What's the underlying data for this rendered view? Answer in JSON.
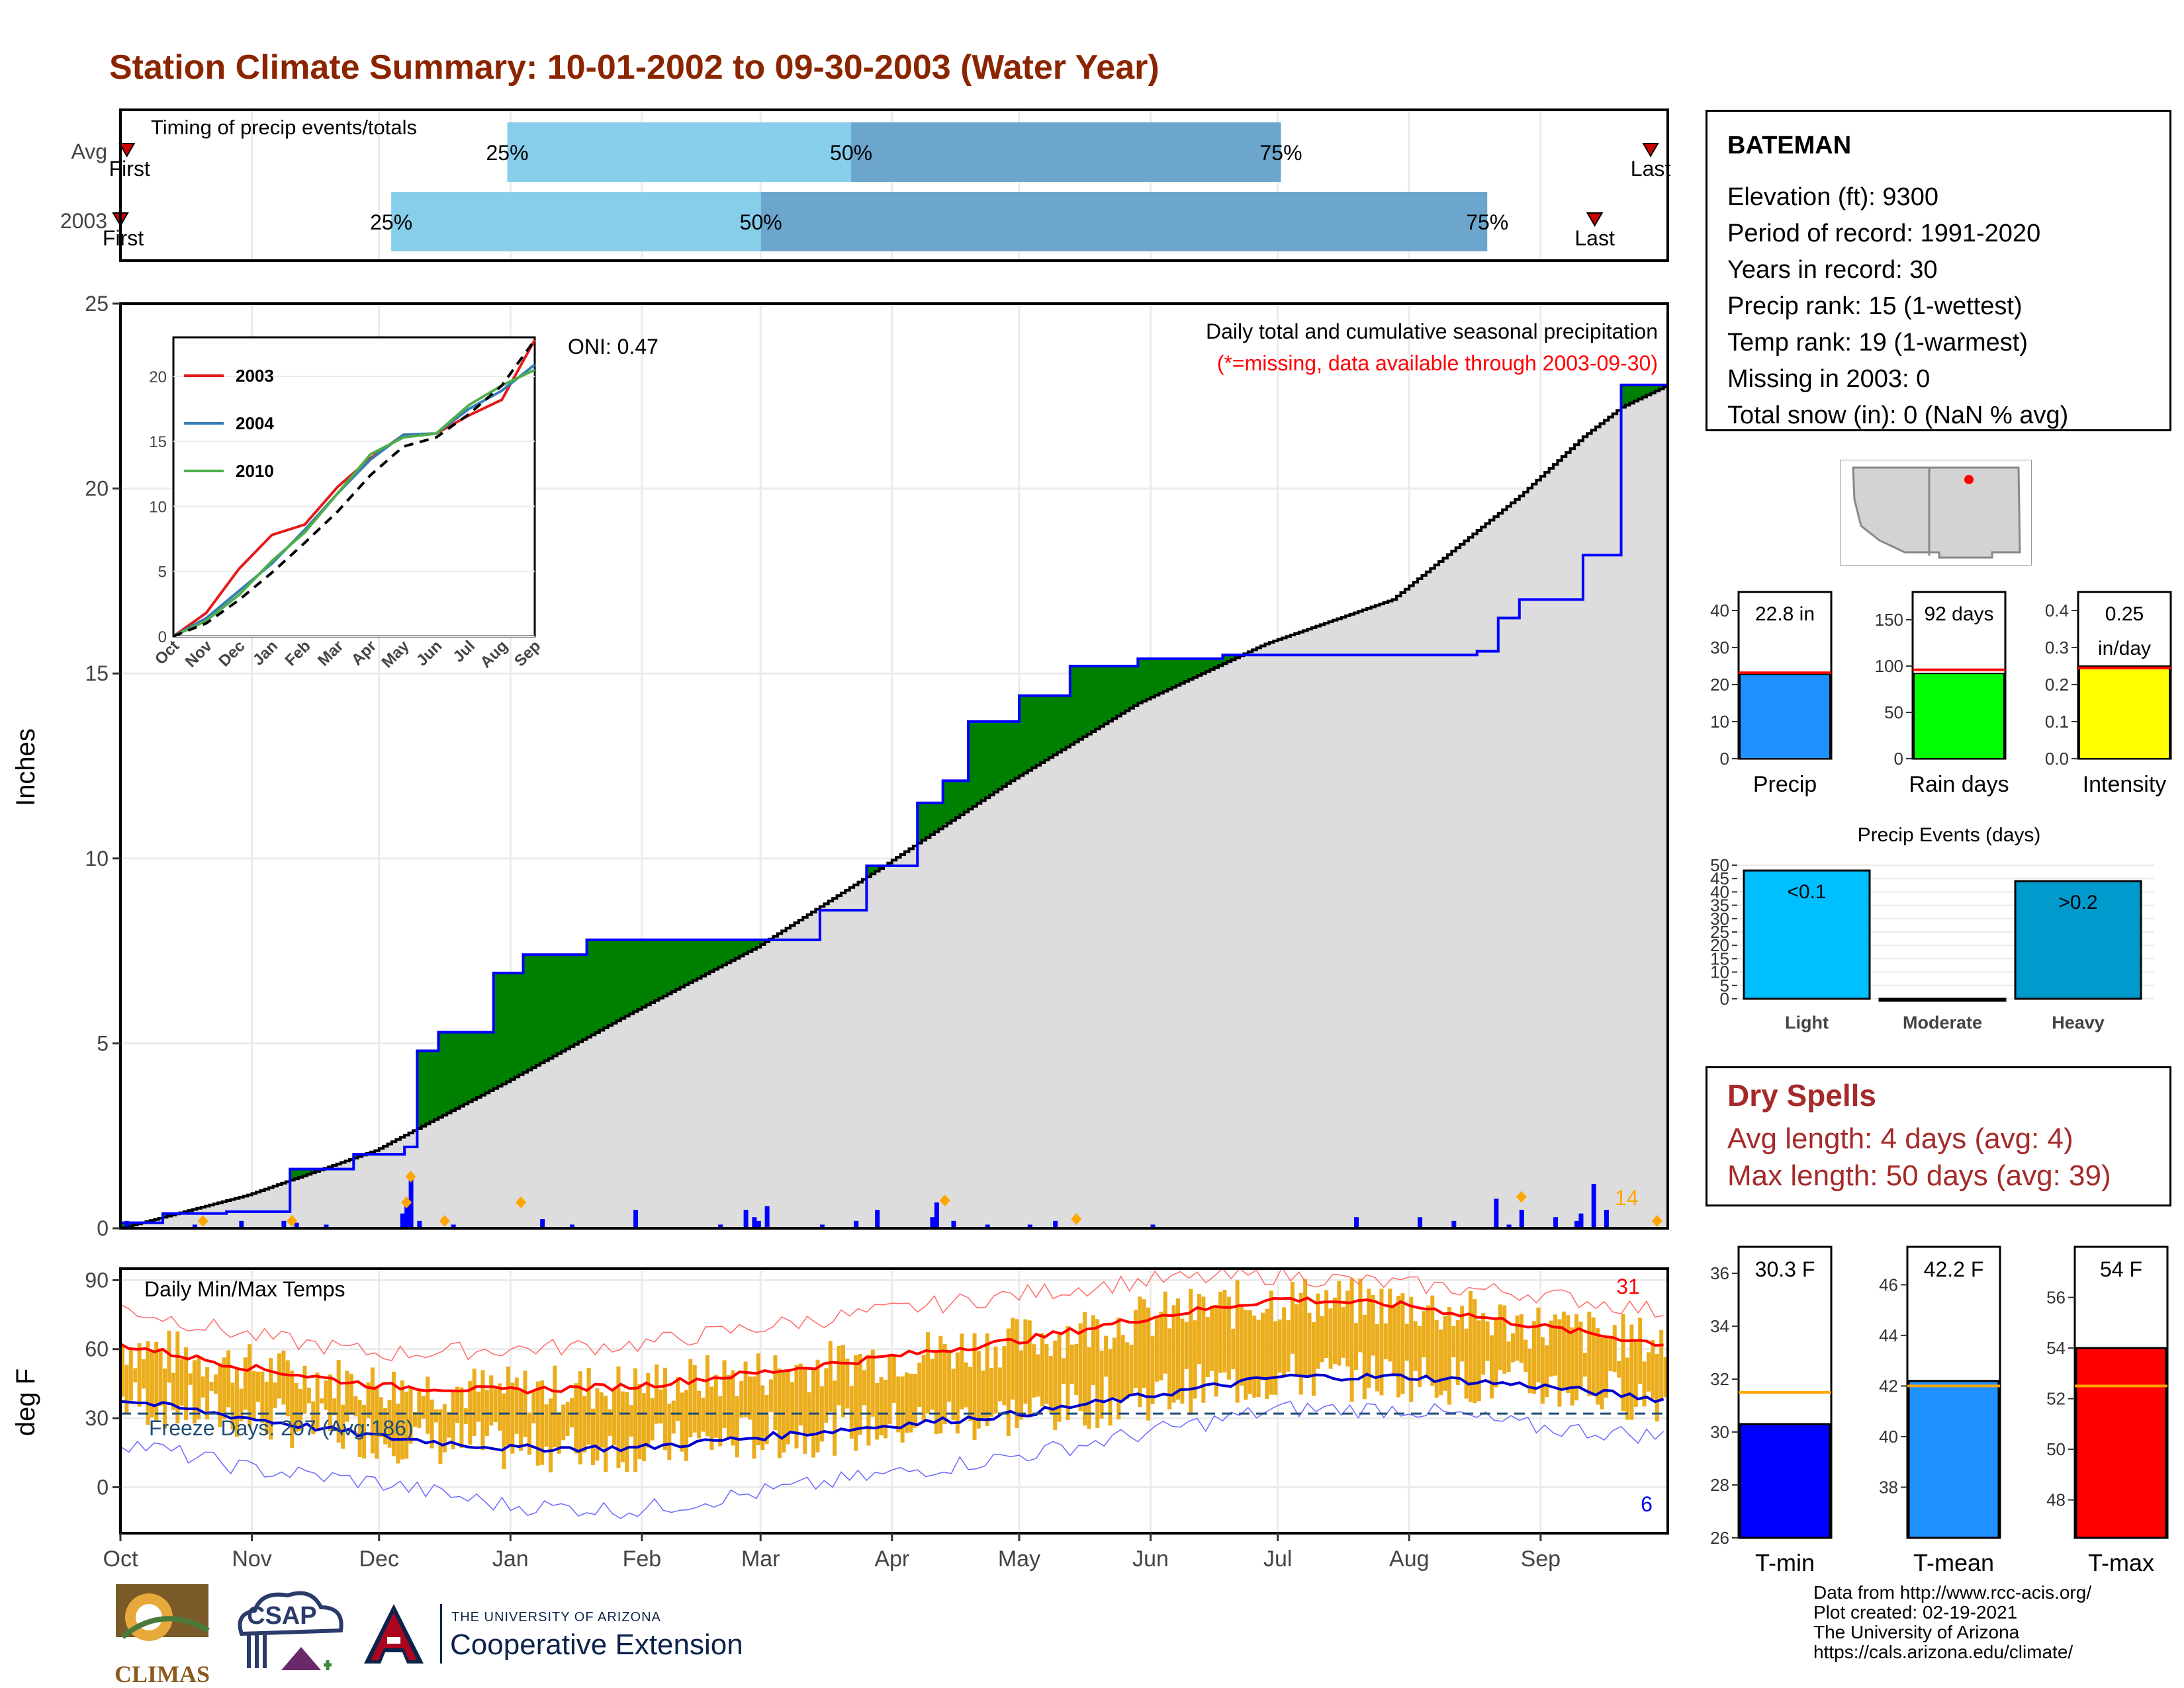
{
  "title": "Station Climate Summary: 10-01-2002 to 09-30-2003 (Water Year)",
  "colors": {
    "title": "#8B2500",
    "quartile_light": "#87CEEB",
    "quartile_dark": "#6CA6CD",
    "surplus": "#008000",
    "deficit": "#8B5A00",
    "avg_area": "#DDDDDD",
    "daily_bars": "#0000FF",
    "temp_bars": "#EBAD1C",
    "tmax_avg_line": "#FF0000",
    "tmin_avg_line": "#0000CD",
    "freeze_line": "#1F4E79"
  },
  "timing": {
    "title": "Timing of precip events/totals",
    "rows": [
      {
        "label": "Avg",
        "first_label": "First",
        "last_label": "Last",
        "first": 0.15,
        "q25": 9.0,
        "q50": 17.0,
        "q75": 27.0,
        "last": 35.6
      },
      {
        "label": "2003",
        "first_label": "First",
        "last_label": "Last",
        "first": 0.0,
        "q25": 6.3,
        "q50": 14.9,
        "q75": 31.8,
        "last": 34.3
      }
    ],
    "pct_labels": [
      "25%",
      "50%",
      "75%"
    ]
  },
  "months": [
    "Oct",
    "Nov",
    "Dec",
    "Jan",
    "Feb",
    "Mar",
    "Apr",
    "May",
    "Jun",
    "Jul",
    "Aug",
    "Sep"
  ],
  "precip": {
    "ylabel": "Inches",
    "yticks": [
      0,
      5,
      10,
      15,
      20,
      25
    ],
    "caption": "Daily total and cumulative seasonal precipitation",
    "missing_note": "(*=missing, data available through 2003-09-30)",
    "oni": "ONI: 0.47",
    "count_label": "14",
    "chart_data": {
      "type": "area",
      "xlabel": "",
      "ylabel": "Inches",
      "ylim": [
        0,
        25
      ],
      "series": [
        {
          "name": "2003",
          "days": [
            0,
            10,
            25,
            40,
            55,
            67,
            70,
            75,
            80,
            88,
            95,
            110,
            114,
            125,
            145,
            165,
            176,
            188,
            194,
            200,
            212,
            224,
            240,
            260,
            320,
            325,
            330,
            345,
            354,
            365
          ],
          "values": [
            0.15,
            0.4,
            0.45,
            1.6,
            2.0,
            2.2,
            4.8,
            5.3,
            5.3,
            6.9,
            7.4,
            7.8,
            7.8,
            7.8,
            7.8,
            8.6,
            9.8,
            11.5,
            12.1,
            13.7,
            14.4,
            15.2,
            15.4,
            15.5,
            15.6,
            16.5,
            17.0,
            18.2,
            22.8,
            22.8
          ]
        },
        {
          "name": "Avg",
          "days": [
            0,
            30,
            60,
            90,
            120,
            150,
            180,
            210,
            240,
            270,
            300,
            330,
            345,
            354,
            365
          ],
          "values": [
            0.0,
            0.9,
            2.1,
            3.9,
            5.8,
            7.6,
            9.8,
            12.1,
            14.2,
            15.8,
            17.0,
            19.8,
            21.4,
            22.2,
            22.8
          ]
        }
      ],
      "daily": {
        "days": [
          1,
          17,
          28,
          38,
          41,
          48,
          66,
          67,
          68,
          70,
          78,
          99,
          106,
          121,
          141,
          147,
          149,
          150,
          152,
          165,
          173,
          178,
          191,
          192,
          196,
          204,
          214,
          220,
          243,
          291,
          306,
          314,
          324,
          327,
          330,
          338,
          343,
          344,
          347,
          350
        ],
        "values": [
          0.2,
          0.1,
          0.2,
          0.2,
          0.15,
          0.1,
          0.4,
          0.6,
          1.4,
          0.2,
          0.1,
          0.25,
          0.1,
          0.5,
          0.1,
          0.5,
          0.3,
          0.2,
          0.6,
          0.1,
          0.2,
          0.5,
          0.3,
          0.7,
          0.2,
          0.1,
          0.1,
          0.2,
          0.1,
          0.3,
          0.3,
          0.2,
          0.8,
          0.1,
          0.5,
          0.3,
          0.2,
          0.4,
          1.2,
          0.5
        ]
      },
      "markers": {
        "days": [
          19,
          40,
          67,
          68,
          76,
          94,
          194,
          225,
          330,
          362
        ],
        "values": [
          0.2,
          0.2,
          0.7,
          1.4,
          0.2,
          0.7,
          0.75,
          0.25,
          0.85,
          0.2
        ]
      }
    },
    "inset": {
      "legend": [
        "2003",
        "2004",
        "2010"
      ],
      "legend_colors": [
        "#E41A1C",
        "#377EB8",
        "#4DAF4A"
      ],
      "months": [
        "Oct",
        "Nov",
        "Dec",
        "Jan",
        "Feb",
        "Mar",
        "Apr",
        "May",
        "Jun",
        "Jul",
        "Aug",
        "Sep"
      ],
      "yticks": [
        0,
        5,
        10,
        15,
        20
      ],
      "chart_data": {
        "type": "line",
        "ylim": [
          0,
          23
        ],
        "series": [
          {
            "name": "2003",
            "values": [
              0,
              1.8,
              5.2,
              7.8,
              8.6,
              11.5,
              13.7,
              15.5,
              15.6,
              17.0,
              18.2,
              22.8
            ]
          },
          {
            "name": "2004",
            "values": [
              0,
              1.4,
              3.5,
              5.6,
              8.2,
              11.0,
              13.6,
              15.5,
              15.6,
              17.5,
              18.9,
              20.9
            ]
          },
          {
            "name": "2010",
            "values": [
              0,
              1.2,
              3.2,
              5.8,
              8.0,
              11.0,
              14.0,
              15.3,
              15.6,
              17.8,
              19.3,
              20.5
            ]
          },
          {
            "name": "Avg",
            "values": [
              0,
              1.0,
              2.8,
              4.9,
              7.2,
              9.6,
              12.4,
              14.6,
              15.3,
              17.1,
              19.3,
              22.8
            ]
          }
        ]
      }
    }
  },
  "temps": {
    "label": "Daily Min/Max Temps",
    "ylabel": "deg F",
    "yticks": [
      0,
      30,
      60,
      90
    ],
    "freeze_label": "Freeze Days: 207 (Avg:186)",
    "count_max": "31",
    "count_min": "6",
    "chart_data": {
      "type": "line",
      "ylim": [
        -20,
        95
      ],
      "freeze_line": 32,
      "avg_tmax": [
        62,
        52,
        44,
        42,
        44,
        50,
        57,
        64,
        74,
        82,
        79,
        70,
        62
      ],
      "avg_tmin": [
        38,
        30,
        22,
        17,
        17,
        22,
        27,
        32,
        40,
        48,
        48,
        44,
        38
      ],
      "record_max": [
        78,
        66,
        58,
        60,
        62,
        70,
        77,
        84,
        90,
        92,
        88,
        84,
        76
      ],
      "record_min": [
        20,
        8,
        2,
        -8,
        -10,
        -2,
        6,
        14,
        24,
        34,
        34,
        26,
        22
      ]
    }
  },
  "station": {
    "name": "BATEMAN",
    "lines": [
      "Elevation (ft): 9300",
      "Period of record: 1991-2020",
      "Years in record: 30",
      "Precip rank: 15 (1-wettest)",
      "Temp rank: 19 (1-warmest)",
      "Missing in 2003: 0",
      "Total snow (in): 0 (NaN % avg)"
    ]
  },
  "summary_bars": [
    {
      "label": "Precip",
      "value_text": "22.8 in",
      "value": 22.8,
      "avg": 23.2,
      "yticks": [
        "0",
        "10",
        "20",
        "30",
        "40"
      ],
      "ymax": 45,
      "color": "#1E90FF"
    },
    {
      "label": "Rain days",
      "value_text": "92 days",
      "value": 92,
      "avg": 96,
      "yticks": [
        "0",
        "50",
        "100",
        "150"
      ],
      "ymax": 180,
      "color": "#00FF00"
    },
    {
      "label": "Intensity",
      "value_text": "0.25",
      "value_text2": "in/day",
      "value": 0.25,
      "avg": 0.245,
      "yticks": [
        "0.0",
        "0.1",
        "0.2",
        "0.3",
        "0.4"
      ],
      "ymax": 0.45,
      "color": "#FFFF00"
    }
  ],
  "events": {
    "title": "Precip Events (days)",
    "yticks": [
      "0",
      "5",
      "10",
      "15",
      "20",
      "25",
      "30",
      "35",
      "40",
      "45",
      "50"
    ],
    "chart_data": {
      "type": "bar",
      "categories": [
        "Light",
        "Moderate",
        "Heavy"
      ],
      "values": [
        48,
        0,
        44
      ],
      "labels": [
        "<0.1",
        "",
        ">0.2"
      ],
      "colors": [
        "#00BFFF",
        "#1874CD",
        "#009ACD"
      ]
    }
  },
  "dry_spells": {
    "title": "Dry Spells",
    "avg_line": "Avg length: 4 days (avg: 4)",
    "max_line": "Max length: 50 days (avg: 39)"
  },
  "temp_bars": [
    {
      "label": "T-min",
      "value_text": "30.3 F",
      "value": 30.3,
      "avg": 31.5,
      "yticks": [
        "26",
        "28",
        "30",
        "32",
        "34",
        "36"
      ],
      "ymin": 26,
      "ymax": 37,
      "color": "#0000FF"
    },
    {
      "label": "T-mean",
      "value_text": "42.2 F",
      "value": 42.2,
      "avg": 42.0,
      "yticks": [
        "38",
        "40",
        "42",
        "44",
        "46"
      ],
      "ymin": 36,
      "ymax": 47.5,
      "color": "#1E90FF"
    },
    {
      "label": "T-max",
      "value_text": "54 F",
      "value": 54,
      "avg": 52.5,
      "yticks": [
        "48",
        "50",
        "52",
        "54",
        "56"
      ],
      "ymin": 46.5,
      "ymax": 58,
      "color": "#FF0000"
    }
  ],
  "footer": {
    "lines": [
      "Data from http://www.rcc-acis.org/",
      "Plot created: 02-19-2021",
      "The University of Arizona",
      "https://cals.arizona.edu/climate/"
    ],
    "logo_climas": "CLIMAS",
    "logo_csap": "CSAP",
    "logo_ua_small": "THE UNIVERSITY OF ARIZONA",
    "logo_ua_big": "Cooperative Extension"
  }
}
